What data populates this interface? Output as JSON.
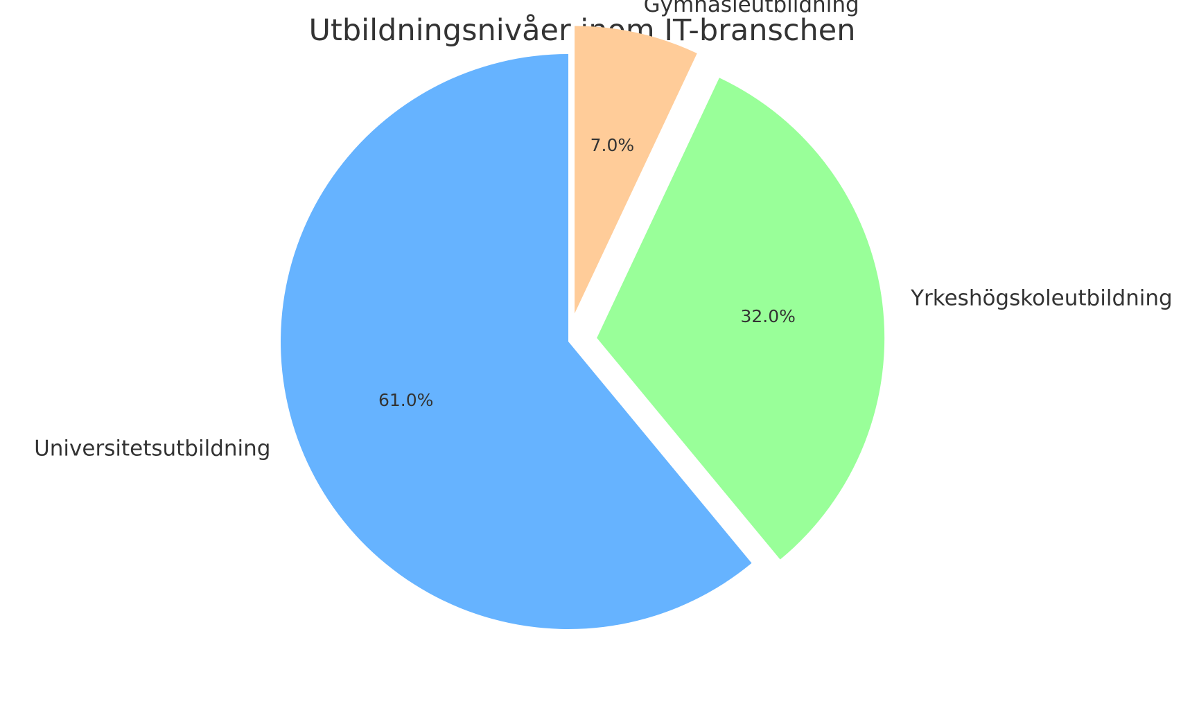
{
  "chart_data": {
    "type": "pie",
    "title": "Utbildningsnivåer inom IT-branschen",
    "categories": [
      "Universitetsutbildning",
      "Yrkeshögskoleutbildning",
      "Gymnasieutbildning"
    ],
    "values": [
      61.0,
      32.0,
      7.0
    ],
    "percent_labels": [
      "61.0%",
      "32.0%",
      "7.0%"
    ],
    "colors": [
      "#66b3ff",
      "#99ff99",
      "#ffcc99"
    ],
    "start_angle_deg": 90,
    "direction": "counterclockwise",
    "exploded": [
      "Gymnasieutbildning",
      "Yrkeshögskoleutbildning"
    ],
    "legend": "none"
  }
}
